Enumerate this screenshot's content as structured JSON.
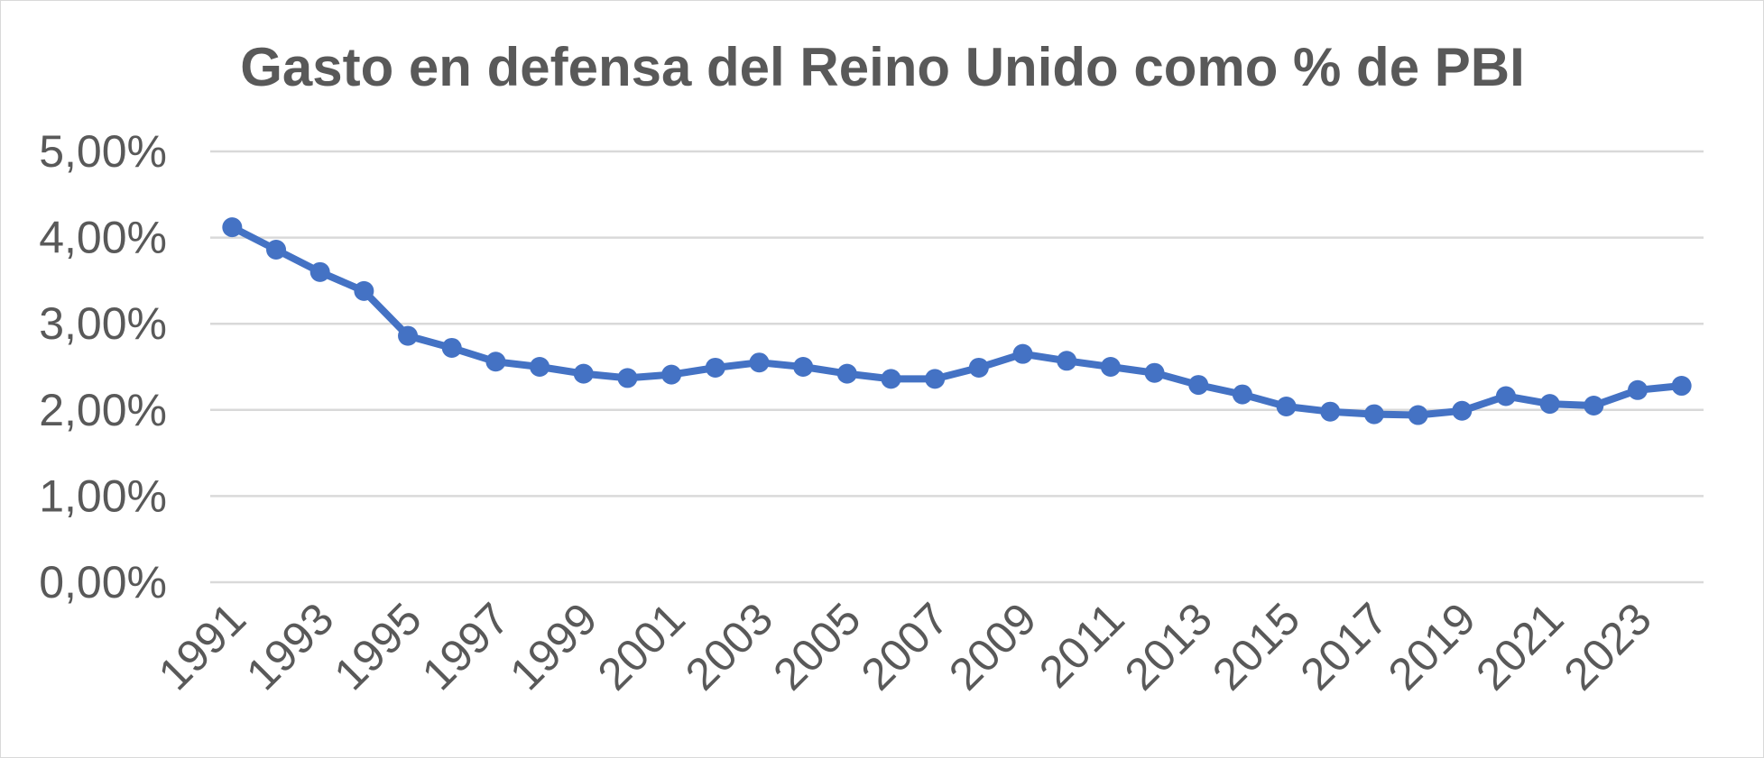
{
  "chart_data": {
    "type": "line",
    "title": "Gasto en defensa del Reino Unido como % de PBI",
    "xlabel": "",
    "ylabel": "",
    "ylim": [
      0,
      5
    ],
    "yticks": [
      0,
      1,
      2,
      3,
      4,
      5
    ],
    "ytick_labels": [
      "0,00%",
      "1,00%",
      "2,00%",
      "3,00%",
      "4,00%",
      "5,00%"
    ],
    "x": [
      1991,
      1992,
      1993,
      1994,
      1995,
      1996,
      1997,
      1998,
      1999,
      2000,
      2001,
      2002,
      2003,
      2004,
      2005,
      2006,
      2007,
      2008,
      2009,
      2010,
      2011,
      2012,
      2013,
      2014,
      2015,
      2016,
      2017,
      2018,
      2019,
      2020,
      2021,
      2022,
      2023,
      2024
    ],
    "xtick_labels": [
      "1991",
      "1993",
      "1995",
      "1997",
      "1999",
      "2001",
      "2003",
      "2005",
      "2007",
      "2009",
      "2011",
      "2013",
      "2015",
      "2017",
      "2019",
      "2021",
      "2023"
    ],
    "series": [
      {
        "values": [
          4.12,
          3.86,
          3.6,
          3.38,
          2.86,
          2.72,
          2.56,
          2.5,
          2.42,
          2.37,
          2.41,
          2.49,
          2.55,
          2.5,
          2.42,
          2.36,
          2.36,
          2.49,
          2.65,
          2.57,
          2.5,
          2.43,
          2.29,
          2.18,
          2.04,
          1.98,
          1.95,
          1.94,
          1.99,
          2.16,
          2.07,
          2.05,
          2.23,
          2.28
        ]
      }
    ],
    "grid": true,
    "legend": "none",
    "colors": {
      "series": "#4472c4",
      "text": "#595959",
      "grid": "#d9d9d9"
    }
  }
}
